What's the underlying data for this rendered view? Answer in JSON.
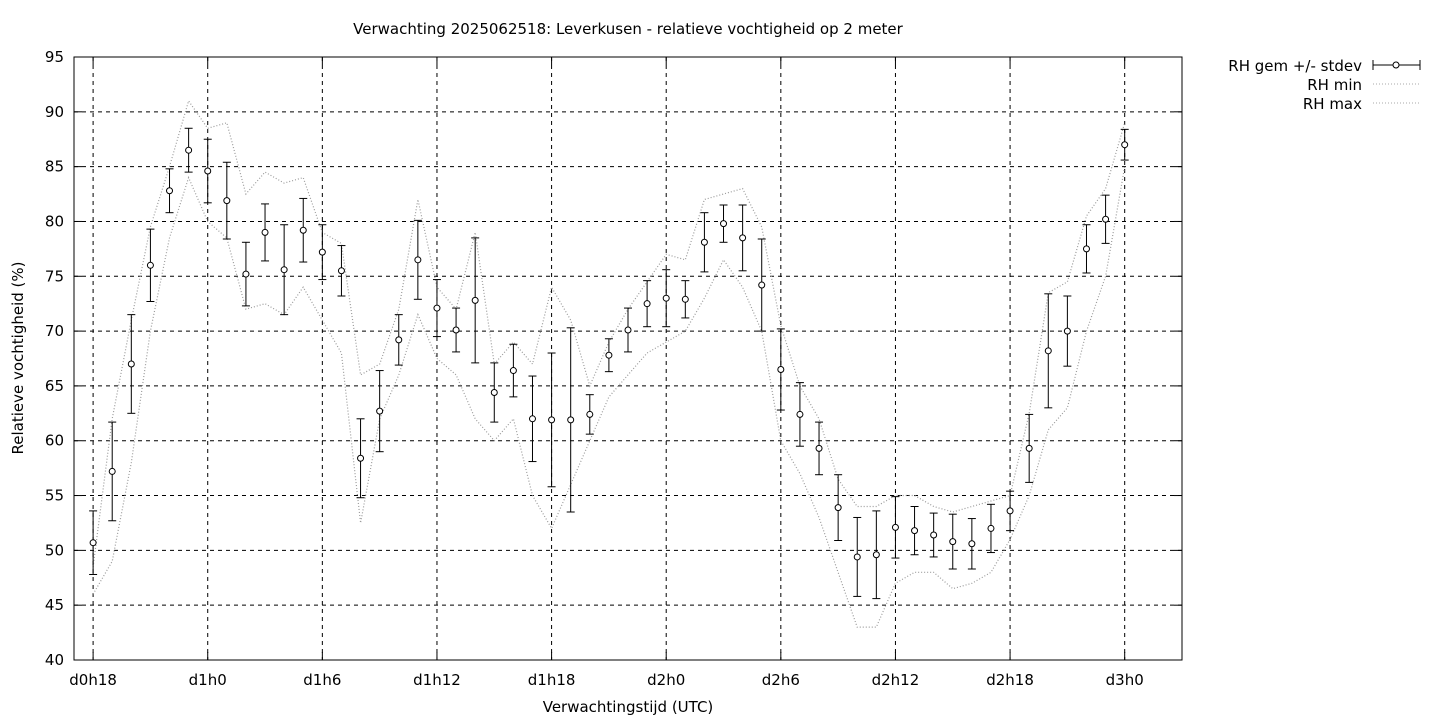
{
  "chart_data": {
    "type": "line",
    "title": "Verwachting 2025062518: Leverkusen - relatieve vochtigheid op 2 meter",
    "xlabel": "Verwachtingstijd (UTC)",
    "ylabel": "Relatieve vochtigheid (%)",
    "ylim": [
      40,
      95
    ],
    "yticks": [
      40,
      45,
      50,
      55,
      60,
      65,
      70,
      75,
      80,
      85,
      90,
      95
    ],
    "xlim_hours": [
      -1,
      57
    ],
    "xticks": [
      {
        "hour": 0,
        "label": "d0h18"
      },
      {
        "hour": 6,
        "label": "d1h0"
      },
      {
        "hour": 12,
        "label": "d1h6"
      },
      {
        "hour": 18,
        "label": "d1h12"
      },
      {
        "hour": 24,
        "label": "d1h18"
      },
      {
        "hour": 30,
        "label": "d2h0"
      },
      {
        "hour": 36,
        "label": "d2h6"
      },
      {
        "hour": 42,
        "label": "d2h12"
      },
      {
        "hour": 48,
        "label": "d2h18"
      },
      {
        "hour": 54,
        "label": "d3h0"
      }
    ],
    "grid": true,
    "legend_position": "outside-top-right",
    "x": [
      0,
      1,
      2,
      3,
      4,
      5,
      6,
      7,
      8,
      9,
      10,
      11,
      12,
      13,
      14,
      15,
      16,
      17,
      18,
      19,
      20,
      21,
      22,
      23,
      24,
      25,
      26,
      27,
      28,
      29,
      30,
      31,
      32,
      33,
      34,
      35,
      36,
      37,
      38,
      39,
      40,
      41,
      42,
      43,
      44,
      45,
      46,
      47,
      48,
      49,
      50,
      51,
      52,
      53,
      54
    ],
    "series": [
      {
        "name": "RH gem +/- stdev",
        "style": "errorbars",
        "mean": [
          50.7,
          57.2,
          67.0,
          76.0,
          82.8,
          86.5,
          84.6,
          81.9,
          75.2,
          79.0,
          75.6,
          79.2,
          77.2,
          75.5,
          58.4,
          62.7,
          69.2,
          76.5,
          72.1,
          70.1,
          72.8,
          64.4,
          66.4,
          62.0,
          61.9,
          61.9,
          62.4,
          67.8,
          70.1,
          72.5,
          73.0,
          72.9,
          78.1,
          79.8,
          78.5,
          74.2,
          66.5,
          62.4,
          59.3,
          53.9,
          49.4,
          49.6,
          52.1,
          51.8,
          51.4,
          50.8,
          50.6,
          52.0,
          53.6,
          59.3,
          68.2,
          70.0,
          77.5,
          80.2,
          87.0
        ],
        "stdev": [
          2.9,
          4.5,
          4.5,
          3.3,
          2.0,
          2.0,
          2.9,
          3.5,
          2.9,
          2.6,
          4.1,
          2.9,
          2.5,
          2.3,
          3.6,
          3.7,
          2.3,
          3.6,
          2.6,
          2.0,
          5.7,
          2.7,
          2.4,
          3.9,
          6.1,
          8.4,
          1.8,
          1.5,
          2.0,
          2.1,
          2.6,
          1.7,
          2.7,
          1.7,
          3.0,
          4.2,
          3.7,
          2.9,
          2.4,
          3.0,
          3.6,
          4.0,
          2.8,
          2.2,
          2.0,
          2.5,
          2.3,
          2.2,
          1.8,
          3.1,
          5.2,
          3.2,
          2.2,
          2.2,
          1.4
        ]
      },
      {
        "name": "RH min",
        "style": "dotted",
        "values": [
          46.0,
          49.0,
          58.0,
          70.0,
          78.5,
          84.0,
          80.0,
          78.5,
          72.0,
          72.5,
          71.5,
          74.0,
          71.0,
          68.0,
          52.5,
          62.0,
          66.0,
          71.5,
          67.5,
          66.0,
          62.0,
          60.0,
          62.0,
          55.0,
          52.0,
          56.0,
          60.0,
          64.0,
          66.0,
          68.0,
          69.0,
          70.0,
          73.0,
          76.5,
          74.0,
          70.0,
          60.0,
          57.0,
          53.0,
          48.0,
          43.0,
          43.0,
          47.0,
          48.0,
          48.0,
          46.5,
          47.0,
          48.0,
          51.0,
          55.0,
          61.0,
          63.0,
          70.0,
          75.0,
          85.0
        ]
      },
      {
        "name": "RH max",
        "style": "dotted",
        "values": [
          48.5,
          62.0,
          71.0,
          79.5,
          85.0,
          91.0,
          88.5,
          89.0,
          82.5,
          84.5,
          83.5,
          84.0,
          79.0,
          78.0,
          66.0,
          67.0,
          72.0,
          82.0,
          74.0,
          72.0,
          79.0,
          67.0,
          69.0,
          67.0,
          74.0,
          71.0,
          65.0,
          69.0,
          72.0,
          74.5,
          77.0,
          76.5,
          82.0,
          82.5,
          83.0,
          79.5,
          70.5,
          65.0,
          62.0,
          56.5,
          54.0,
          54.0,
          55.0,
          55.0,
          54.0,
          53.5,
          54.0,
          54.5,
          55.0,
          62.5,
          73.5,
          74.5,
          80.5,
          83.0,
          89.0
        ]
      }
    ]
  }
}
